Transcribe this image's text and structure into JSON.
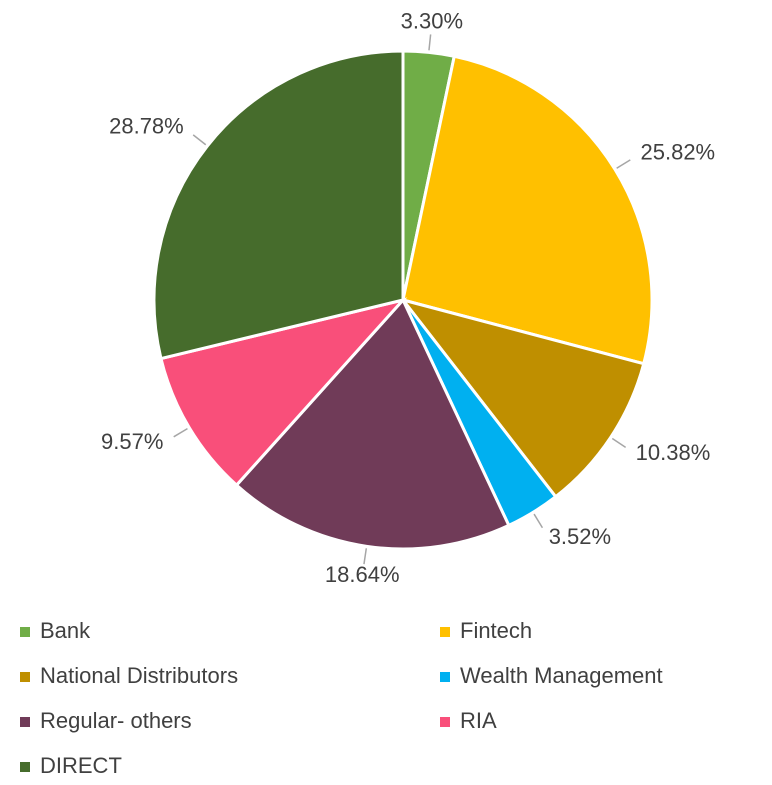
{
  "chart_data": {
    "type": "pie",
    "categories": [
      "Bank",
      "Fintech",
      "National Distributors",
      "Wealth Management",
      "Regular- others",
      "RIA",
      "DIRECT"
    ],
    "values": [
      3.3,
      25.82,
      10.38,
      3.52,
      18.64,
      9.57,
      28.78
    ],
    "value_labels": [
      "3.30%",
      "25.82%",
      "10.38%",
      "3.52%",
      "18.64%",
      "9.57%",
      "28.78%"
    ],
    "colors": [
      "#70ad47",
      "#ffc000",
      "#bf8f00",
      "#00b0f0",
      "#703b58",
      "#f94f7a",
      "#466c2c"
    ],
    "legend": "bottom"
  }
}
